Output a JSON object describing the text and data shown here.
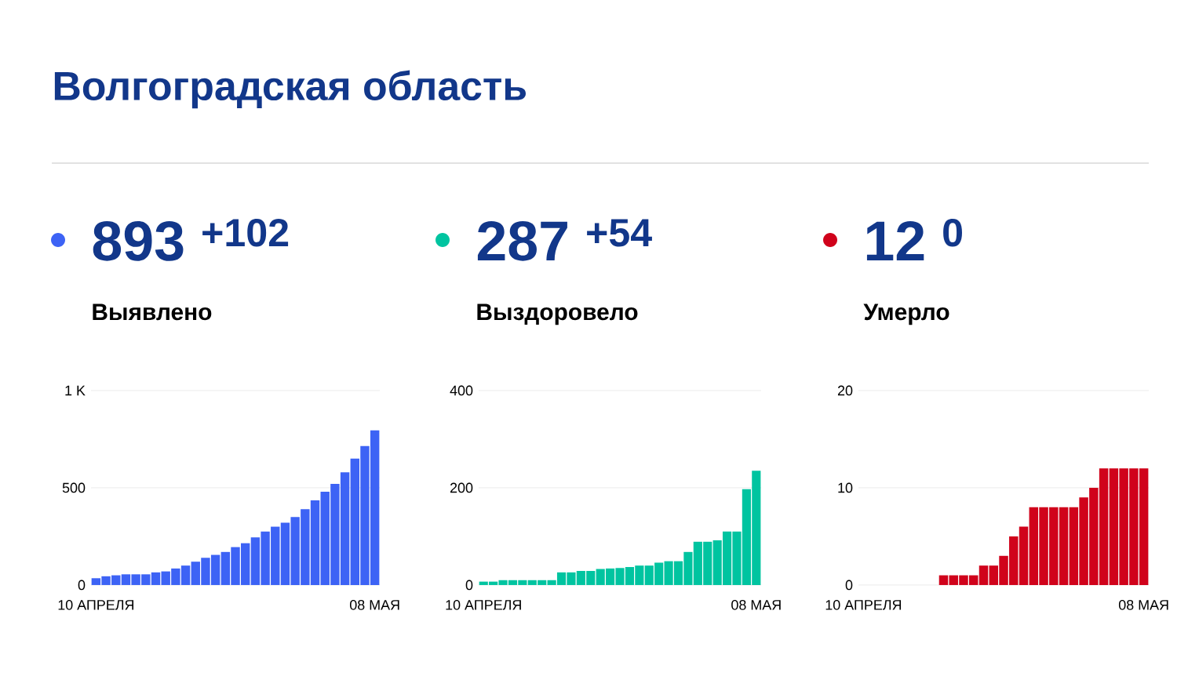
{
  "chart_data": [
    {
      "type": "other",
      "title": "Волгоградская область"
    },
    {
      "type": "bar",
      "title": "893 $^{+102}$",
      "subtitle": "Выявлено",
      "color": "#3d63f5",
      "categories": [
        "10 АПРЕЛЯ",
        null,
        null,
        null,
        null,
        null,
        null,
        null,
        null,
        null,
        null,
        null,
        null,
        null,
        null,
        null,
        null,
        null,
        null,
        null,
        null,
        null,
        null,
        null,
        null,
        null,
        null,
        null,
        "08 МАЯ"
      ],
      "values": [
        35,
        45,
        50,
        55,
        55,
        55,
        65,
        70,
        85,
        100,
        120,
        140,
        155,
        170,
        195,
        215,
        245,
        275,
        300,
        320,
        350,
        390,
        435,
        480,
        520,
        580,
        650,
        715,
        795
      ],
      "ylim": [
        0,
        1000
      ],
      "yticks": [
        0,
        500,
        {
          "value": 1000,
          "label": "1 K"
        }
      ],
      "grid": "y"
    },
    {
      "type": "bar",
      "title": "287 $^{+54}$",
      "subtitle": "Выздоровело",
      "color": "#00c4a0",
      "categories": [
        "10 АПРЕЛЯ",
        null,
        null,
        null,
        null,
        null,
        null,
        null,
        null,
        null,
        null,
        null,
        null,
        null,
        null,
        null,
        null,
        null,
        null,
        null,
        null,
        null,
        null,
        null,
        null,
        null,
        null,
        null,
        "08 МАЯ"
      ],
      "values": [
        7,
        7,
        10,
        10,
        10,
        10,
        10,
        10,
        26,
        26,
        29,
        29,
        33,
        34,
        35,
        37,
        40,
        40,
        46,
        49,
        49,
        68,
        89,
        89,
        92,
        110,
        110,
        197,
        235
      ],
      "ylim": [
        0,
        400
      ],
      "yticks": [
        0,
        200,
        400
      ],
      "grid": "y"
    },
    {
      "type": "bar",
      "title": "12 $^{0}$",
      "subtitle": "Умерло",
      "color": "#d0021b",
      "categories": [
        "10 АПРЕЛЯ",
        null,
        null,
        null,
        null,
        null,
        null,
        null,
        null,
        null,
        null,
        null,
        null,
        null,
        null,
        null,
        null,
        null,
        null,
        null,
        null,
        null,
        null,
        null,
        null,
        null,
        null,
        null,
        "08 МАЯ"
      ],
      "values": [
        0,
        0,
        0,
        0,
        0,
        0,
        0,
        0,
        1,
        1,
        1,
        1,
        2,
        2,
        3,
        5,
        6,
        8,
        8,
        8,
        8,
        8,
        9,
        10,
        12,
        12,
        12,
        12,
        12
      ],
      "ylim": [
        0,
        20
      ],
      "yticks": [
        0,
        10,
        20
      ],
      "grid": "y"
    }
  ]
}
